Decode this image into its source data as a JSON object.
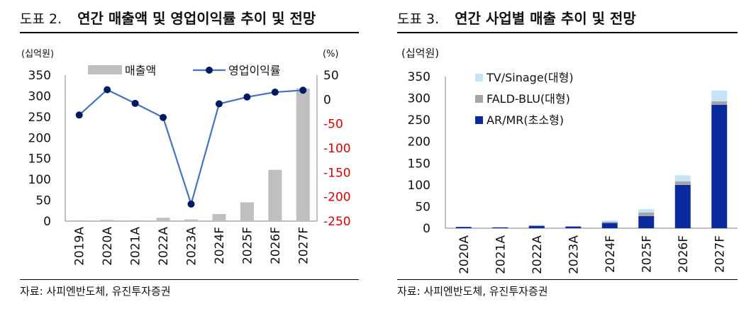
{
  "figures": [
    {
      "number": "도표 2.",
      "title": "연간 매출액 및 영업이익률 추이 및 전망",
      "source": "자료: 사피엔반도체, 유진투자증권"
    },
    {
      "number": "도표 3.",
      "title": "연간 사업별 매출 추이 및 전망",
      "source": "자료: 사피엔반도체, 유진투자증권"
    }
  ],
  "chart_data": [
    {
      "type": "bar",
      "title": "연간 매출액 및 영업이익률 추이 및 전망",
      "ylabel_left": "(십억원)",
      "ylabel_right": "(%)",
      "categories": [
        "2019A",
        "2020A",
        "2021A",
        "2022A",
        "2023A",
        "2024F",
        "2025F",
        "2026F",
        "2027F"
      ],
      "y_left_ticks": [
        "0",
        "50",
        "100",
        "150",
        "200",
        "250",
        "300",
        "350"
      ],
      "y_right_ticks": [
        "50",
        "0",
        "-50",
        "-100",
        "-150",
        "-200",
        "-250"
      ],
      "ylim_left": [
        0,
        350
      ],
      "ylim_right": [
        -250,
        50
      ],
      "legend_position": "top",
      "grid": false,
      "series": [
        {
          "name": "매출액",
          "kind": "bar",
          "axis": "left",
          "color": "#bfbfbf",
          "values": [
            2,
            3,
            2,
            8,
            4,
            17,
            45,
            123,
            318
          ]
        },
        {
          "name": "영업이익률",
          "kind": "line",
          "axis": "right",
          "color": "#1e3a8a",
          "values": [
            -32,
            20,
            -8,
            -37,
            -215,
            -9,
            5,
            15,
            19
          ]
        }
      ],
      "right_axis_negative_color": "#e00000"
    },
    {
      "type": "stacked-bar",
      "title": "연간 사업별 매출 추이 및 전망",
      "ylabel": "(십억원)",
      "categories": [
        "2020A",
        "2021A",
        "2022A",
        "2023A",
        "2024F",
        "2025F",
        "2026F",
        "2027F"
      ],
      "y_ticks": [
        "0",
        "50",
        "100",
        "150",
        "200",
        "250",
        "300",
        "350"
      ],
      "ylim": [
        0,
        350
      ],
      "legend_position": "top-left",
      "grid": false,
      "series": [
        {
          "name": "AR/MR(초소형)",
          "color": "#0a2a9e",
          "values": [
            3,
            2,
            5,
            4,
            12,
            28,
            100,
            285
          ]
        },
        {
          "name": "FALD-BLU(대형)",
          "color": "#a6a6a6",
          "values": [
            0,
            0,
            2,
            0,
            3,
            8,
            8,
            8
          ]
        },
        {
          "name": "TV/Sinage(대형)",
          "color": "#c5e3f7",
          "values": [
            0,
            0,
            0,
            0,
            3,
            8,
            14,
            25
          ]
        }
      ]
    }
  ]
}
